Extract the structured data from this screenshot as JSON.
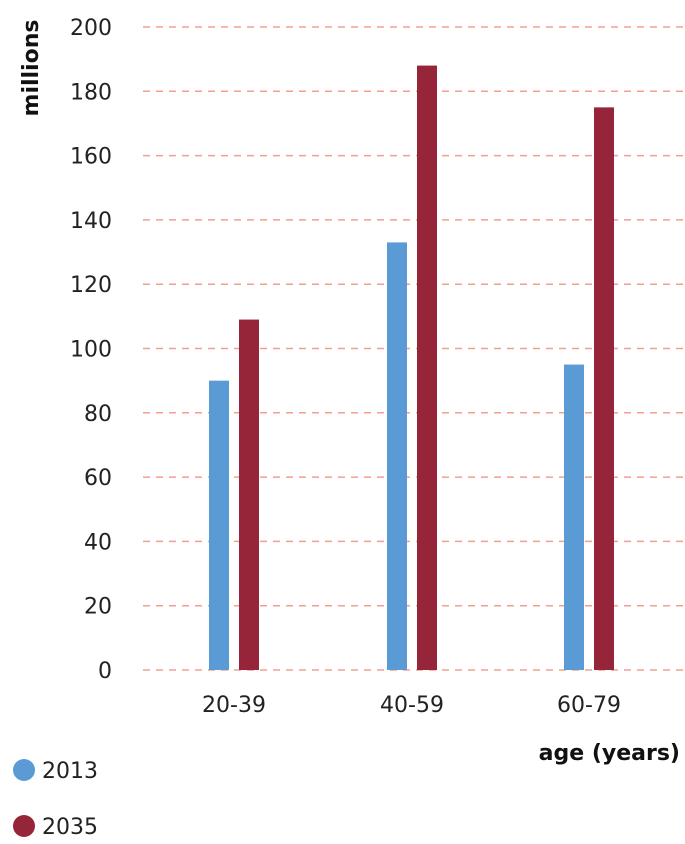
{
  "chart_data": {
    "type": "bar",
    "categories": [
      "20-39",
      "40-59",
      "60-79"
    ],
    "series": [
      {
        "name": "2013",
        "values": [
          90,
          133,
          95
        ],
        "color": "#5b9bd5"
      },
      {
        "name": "2035",
        "values": [
          109,
          188,
          175
        ],
        "color": "#96253a"
      }
    ],
    "xlabel": "age (years)",
    "ylabel": "millions",
    "ylim": [
      0,
      200
    ],
    "yticks": [
      "0",
      "20",
      "40",
      "60",
      "80",
      "100",
      "120",
      "140",
      "160",
      "180",
      "200"
    ],
    "grid": true,
    "grid_color": "#f0a090",
    "legend_position": "bottom-left"
  }
}
